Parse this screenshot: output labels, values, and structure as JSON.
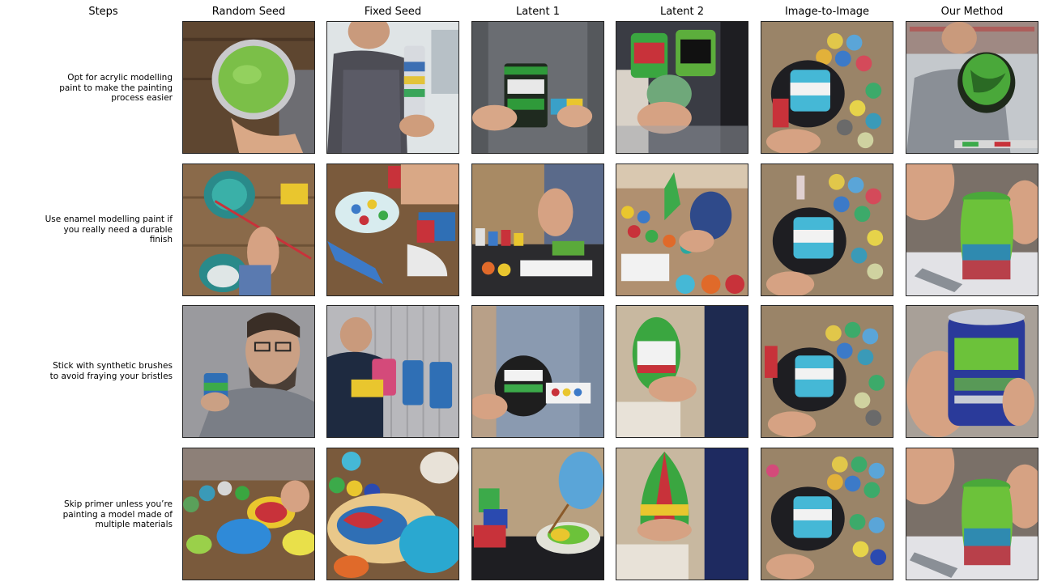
{
  "header": {
    "steps_label": "Steps",
    "columns": [
      "Random Seed",
      "Fixed Seed",
      "Latent 1",
      "Latent 2",
      "Image-to-Image",
      "Our Method"
    ]
  },
  "rows": [
    {
      "step_lines": [
        "Opt for acrylic modelling",
        "paint to make the painting",
        "process easier"
      ]
    },
    {
      "step_lines": [
        "Use enamel modelling paint if",
        "you really need a durable",
        "finish"
      ]
    },
    {
      "step_lines": [
        "Stick with synthetic brushes",
        "to avoid fraying your bristles"
      ]
    },
    {
      "step_lines": [
        "Skip primer unless you’re",
        "painting a model made of",
        "multiple materials"
      ]
    }
  ],
  "cells": [
    [
      "photo-paint-tin-open",
      "photo-man-holding-can",
      "photo-hands-holding-tin",
      "photo-cans-closeup",
      "photo-paint-pots-table",
      "photo-man-green-tin"
    ],
    [
      "photo-painting-table",
      "photo-palette-brushes",
      "photo-workbench",
      "photo-paint-pots-workshop",
      "photo-paint-pots-table",
      "photo-painting-vase"
    ],
    [
      "photo-man-portrait",
      "photo-man-with-cans",
      "photo-hands-holding-tin",
      "photo-cans-closeup",
      "photo-paint-pots-table",
      "photo-hand-holding-can"
    ],
    [
      "photo-paint-plates",
      "photo-colorful-palette",
      "photo-hand-painting",
      "photo-painted-egg",
      "photo-paint-pots-table",
      "photo-painting-vase"
    ]
  ],
  "palette": {
    "wood": "#7a5a3c",
    "green": "#6fbf3a",
    "blue": "#2f6fb5",
    "teal": "#2aa8a0",
    "red": "#c8323a",
    "yellow": "#e9c62e",
    "grey": "#8c8c8c"
  }
}
